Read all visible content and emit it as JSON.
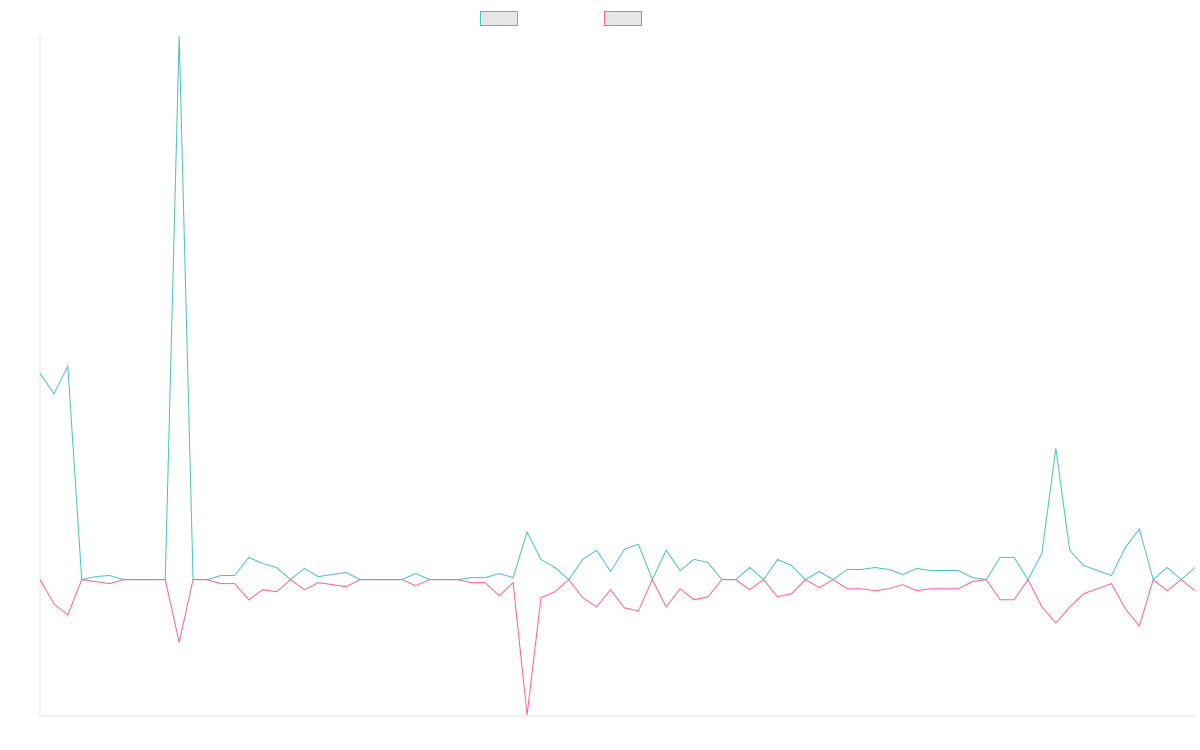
{
  "chart_data": {
    "type": "line",
    "x": [
      0,
      1,
      2,
      3,
      4,
      5,
      6,
      7,
      8,
      9,
      10,
      11,
      12,
      13,
      14,
      15,
      16,
      17,
      18,
      19,
      20,
      21,
      22,
      23,
      24,
      25,
      26,
      27,
      28,
      29,
      30,
      31,
      32,
      33,
      34,
      35,
      36,
      37,
      38,
      39,
      40,
      41,
      42,
      43,
      44,
      45,
      46,
      47,
      48,
      49,
      50,
      51,
      52,
      53,
      54,
      55,
      56,
      57,
      58,
      59,
      60,
      61,
      62,
      63,
      64,
      65,
      66,
      67,
      68,
      69,
      70,
      71,
      72,
      73,
      74,
      75,
      76,
      77,
      78,
      79,
      80,
      81,
      82,
      83
    ],
    "series": [
      {
        "name": "",
        "color": "#4bc0c0",
        "values": [
          204,
          184,
          211,
          0,
          3,
          4,
          0,
          0,
          0,
          0,
          538,
          0,
          0,
          4,
          4,
          22,
          16,
          12,
          0,
          11,
          3,
          5,
          7,
          0,
          0,
          0,
          0,
          6,
          0,
          0,
          0,
          2,
          2,
          6,
          2,
          47,
          20,
          12,
          0,
          20,
          29,
          8,
          30,
          35,
          0,
          29,
          9,
          20,
          17,
          0,
          0,
          12,
          0,
          20,
          14,
          0,
          8,
          0,
          10,
          10,
          12,
          10,
          5,
          11,
          9,
          9,
          9,
          2,
          0,
          22,
          22,
          0,
          26,
          130,
          29,
          14,
          9,
          4,
          32,
          50,
          0,
          12,
          0,
          12
        ]
      },
      {
        "name": "",
        "color": "#ff6384",
        "values": [
          0,
          -24,
          -35,
          0,
          -2,
          -4,
          0,
          0,
          0,
          0,
          -62,
          0,
          0,
          -4,
          -4,
          -20,
          -10,
          -12,
          0,
          -10,
          -3,
          -5,
          -7,
          0,
          0,
          0,
          0,
          -6,
          0,
          0,
          0,
          -3,
          -3,
          -16,
          -3,
          -134,
          -18,
          -12,
          0,
          -18,
          -27,
          -10,
          -28,
          -31,
          0,
          -27,
          -9,
          -20,
          -17,
          0,
          0,
          -10,
          0,
          -17,
          -14,
          0,
          -8,
          0,
          -9,
          -9,
          -11,
          -9,
          -5,
          -11,
          -9,
          -9,
          -9,
          -2,
          0,
          -20,
          -20,
          0,
          -27,
          -43,
          -27,
          -14,
          -9,
          -4,
          -29,
          -46,
          0,
          -11,
          0,
          -11
        ]
      }
    ],
    "ylim": [
      -135,
      538
    ],
    "xlim": [
      0,
      83
    ],
    "grid": false,
    "legend_position": "top-center"
  }
}
